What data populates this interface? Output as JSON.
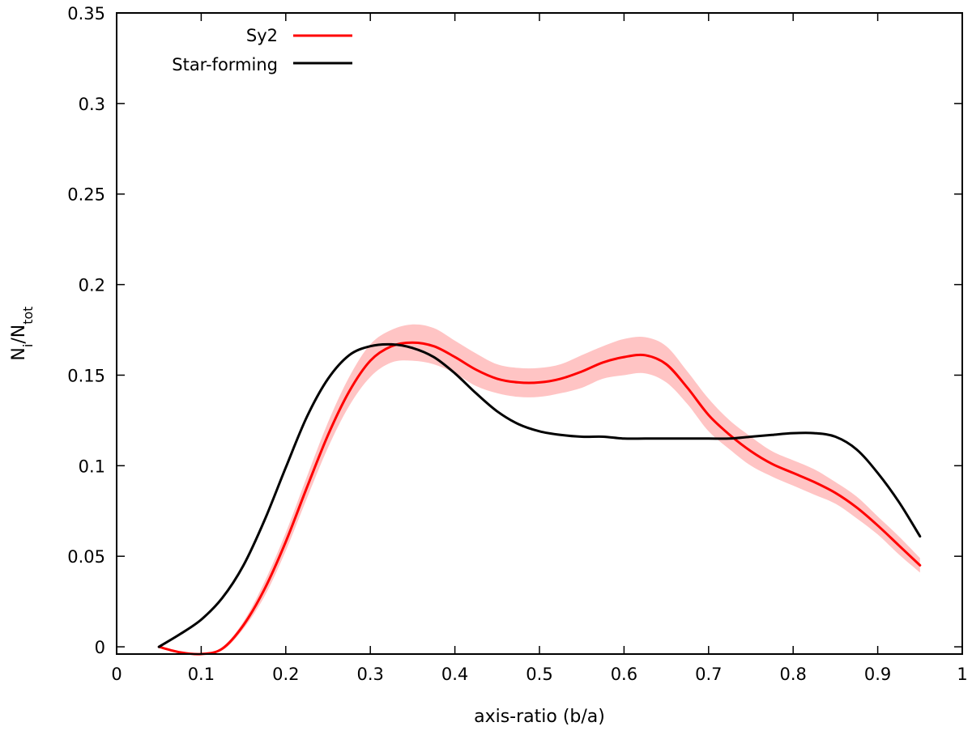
{
  "chart_data": {
    "type": "line",
    "xlabel": "axis-ratio (b/a)",
    "ylabel": {
      "base": "N",
      "sub1": "i",
      "mid": "/N",
      "sub2": "tot"
    },
    "xlim": [
      0,
      1
    ],
    "ylim": [
      -0.004,
      0.35
    ],
    "xticks": [
      0,
      0.1,
      0.2,
      0.3,
      0.4,
      0.5,
      0.6,
      0.7,
      0.8,
      0.9,
      1
    ],
    "xtick_labels": [
      "0",
      "0.1",
      "0.2",
      "0.3",
      "0.4",
      "0.5",
      "0.6",
      "0.7",
      "0.8",
      "0.9",
      "1"
    ],
    "yticks": [
      0,
      0.05,
      0.1,
      0.15,
      0.2,
      0.25,
      0.3,
      0.35
    ],
    "ytick_labels": [
      "0",
      "0.05",
      "0.1",
      "0.15",
      "0.2",
      "0.25",
      "0.3",
      "0.35"
    ],
    "grid": false,
    "legend_position": "top-left",
    "x": [
      0.05,
      0.075,
      0.1,
      0.125,
      0.15,
      0.175,
      0.2,
      0.225,
      0.25,
      0.275,
      0.3,
      0.325,
      0.35,
      0.375,
      0.4,
      0.425,
      0.45,
      0.475,
      0.5,
      0.525,
      0.55,
      0.575,
      0.6,
      0.625,
      0.65,
      0.675,
      0.7,
      0.725,
      0.75,
      0.775,
      0.8,
      0.825,
      0.85,
      0.875,
      0.9,
      0.925,
      0.95
    ],
    "series": [
      {
        "name": "Sy2",
        "color": "#ff0000",
        "band_color": "#ffc4c4",
        "values": [
          0.0,
          -0.003,
          -0.004,
          -0.001,
          0.012,
          0.032,
          0.058,
          0.088,
          0.117,
          0.141,
          0.158,
          0.166,
          0.168,
          0.166,
          0.16,
          0.153,
          0.148,
          0.146,
          0.146,
          0.148,
          0.152,
          0.157,
          0.16,
          0.161,
          0.156,
          0.143,
          0.128,
          0.117,
          0.108,
          0.101,
          0.096,
          0.091,
          0.085,
          0.077,
          0.067,
          0.056,
          0.045
        ],
        "band_halfwidth": [
          0.0,
          0.0,
          0.0,
          0.001,
          0.002,
          0.004,
          0.005,
          0.006,
          0.007,
          0.008,
          0.009,
          0.009,
          0.01,
          0.01,
          0.009,
          0.009,
          0.008,
          0.008,
          0.008,
          0.008,
          0.009,
          0.009,
          0.01,
          0.01,
          0.01,
          0.009,
          0.009,
          0.008,
          0.008,
          0.007,
          0.007,
          0.007,
          0.006,
          0.006,
          0.005,
          0.005,
          0.004
        ]
      },
      {
        "name": "Star-forming",
        "color": "#000000",
        "values": [
          0.0,
          0.007,
          0.015,
          0.027,
          0.045,
          0.07,
          0.099,
          0.127,
          0.148,
          0.161,
          0.166,
          0.167,
          0.165,
          0.16,
          0.151,
          0.14,
          0.13,
          0.123,
          0.119,
          0.117,
          0.116,
          0.116,
          0.115,
          0.115,
          0.115,
          0.115,
          0.115,
          0.115,
          0.116,
          0.117,
          0.118,
          0.118,
          0.116,
          0.109,
          0.096,
          0.08,
          0.061
        ]
      }
    ]
  }
}
